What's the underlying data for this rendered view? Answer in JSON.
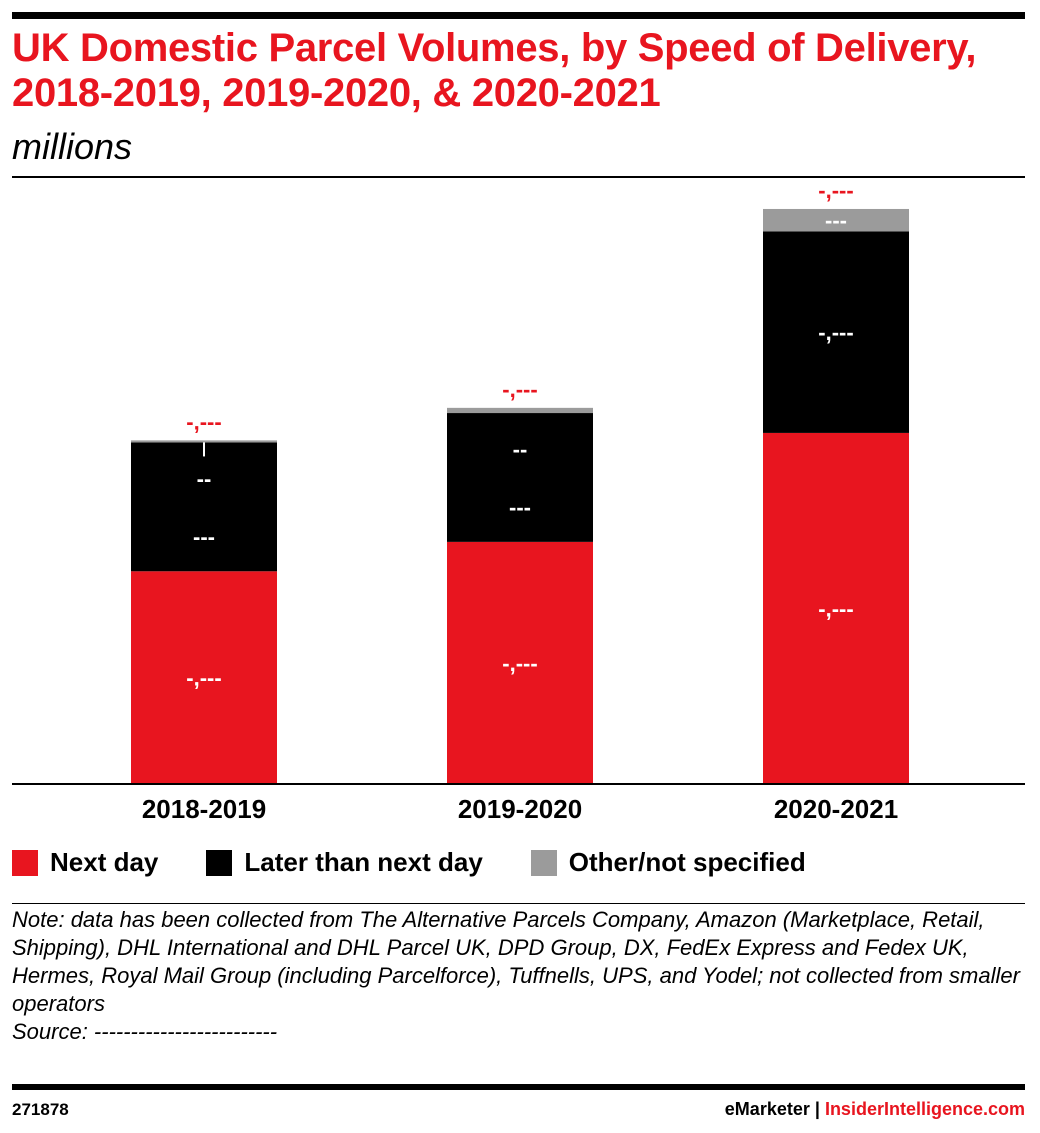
{
  "header": {
    "title": "UK Domestic Parcel Volumes, by Speed of Delivery, 2018-2019, 2019-2020, & 2020-2021",
    "subtitle": "millions"
  },
  "legend": [
    {
      "label": "Next day",
      "color": "#e8151f"
    },
    {
      "label": "Later than next day",
      "color": "#000000"
    },
    {
      "label": "Other/not specified",
      "color": "#9b9b9b"
    }
  ],
  "chart_data": {
    "type": "bar",
    "stacked": true,
    "categories": [
      "2018-2019",
      "2019-2020",
      "2020-2021"
    ],
    "series": [
      {
        "name": "Next day",
        "color": "#e8151f",
        "values": [
          1230,
          1400,
          2030
        ],
        "labels": [
          "-,---",
          "-,---",
          "-,---"
        ]
      },
      {
        "name": "Later than next day",
        "color": "#000000",
        "values": [
          745,
          745,
          1165
        ],
        "labels": [
          "---",
          "---",
          "-,---"
        ]
      },
      {
        "name": "Other/not specified",
        "color": "#9b9b9b",
        "values": [
          12,
          30,
          130
        ],
        "labels": [
          "",
          "",
          "---"
        ]
      }
    ],
    "extra_labels": [
      [
        "--"
      ],
      [
        "--"
      ],
      []
    ],
    "totals": [
      "-,---",
      "-,---",
      "-,---"
    ],
    "ylim": [
      0,
      3400
    ],
    "grid": false,
    "legend_position": "bottom"
  },
  "notes": {
    "note": "Note: data has been collected from The Alternative Parcels Company, Amazon (Marketplace, Retail, Shipping), DHL International and DHL Parcel UK, DPD Group, DX, FedEx Express and Fedex UK, Hermes, Royal Mail Group (including Parcelforce), Tuffnells, UPS, and Yodel; not collected from smaller operators",
    "source": "Source: -------------------------"
  },
  "footer": {
    "id": "271878",
    "brand": "eMarketer",
    "separator": "|",
    "site": "InsiderIntelligence.com"
  }
}
